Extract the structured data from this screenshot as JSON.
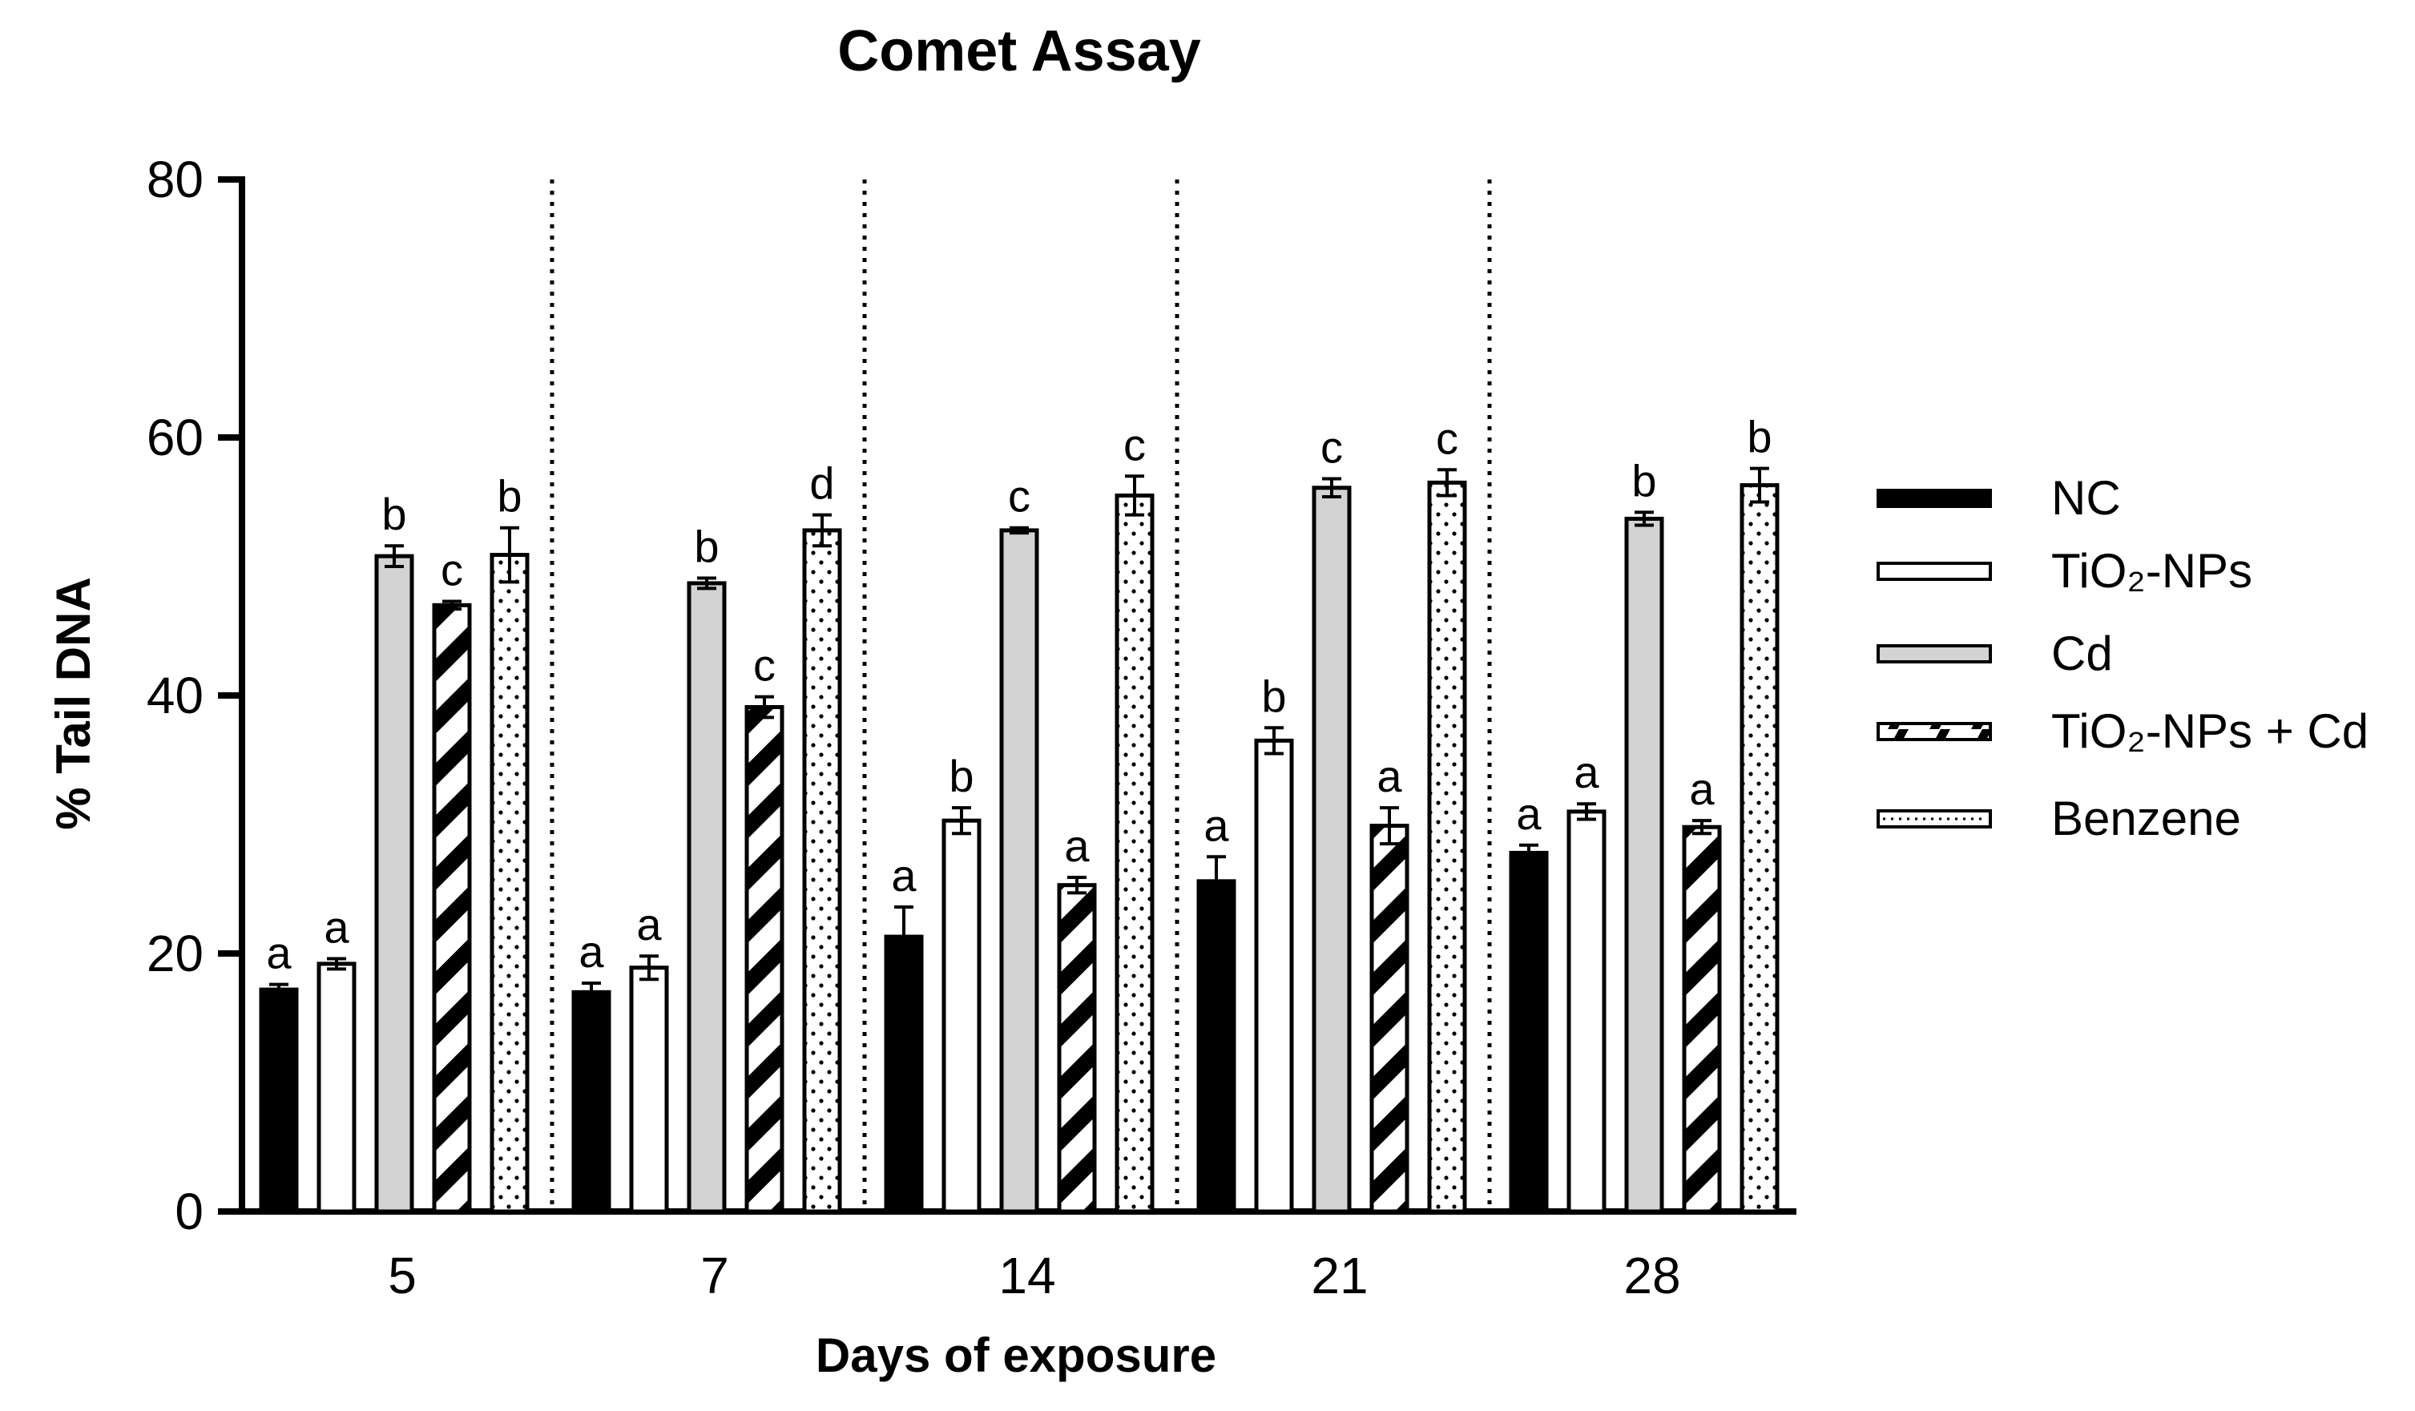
{
  "chart_data": {
    "type": "bar",
    "title": "Comet Assay",
    "xlabel": "Days of exposure",
    "ylabel": "% Tail DNA",
    "ylim": [
      0,
      80
    ],
    "yticks": [
      "0",
      "20",
      "40",
      "60",
      "80"
    ],
    "grid": false,
    "legend_position": "right",
    "categories": [
      "5",
      "7",
      "14",
      "21",
      "28"
    ],
    "series": [
      {
        "name": "NC",
        "pattern": "solid-black",
        "values": [
          17.2,
          17.0,
          21.3,
          25.6,
          27.8
        ],
        "errors": [
          0.4,
          0.7,
          2.3,
          1.9,
          0.6
        ],
        "labels": [
          "a",
          "a",
          "a",
          "a",
          "a"
        ]
      },
      {
        "name": "TiO₂-NPs",
        "pattern": "white",
        "values": [
          19.2,
          18.9,
          30.3,
          36.5,
          31.0
        ],
        "errors": [
          0.4,
          0.9,
          1.0,
          1.0,
          0.6
        ],
        "labels": [
          "a",
          "a",
          "b",
          "b",
          "a"
        ]
      },
      {
        "name": "Cd",
        "pattern": "gray",
        "values": [
          50.8,
          48.7,
          52.8,
          56.1,
          53.7
        ],
        "errors": [
          0.8,
          0.4,
          0.2,
          0.7,
          0.5
        ],
        "labels": [
          "b",
          "b",
          "c",
          "c",
          "b"
        ]
      },
      {
        "name": "TiO₂-NPs + Cd",
        "pattern": "diagonal-hatch",
        "values": [
          47.0,
          39.1,
          25.3,
          29.9,
          29.8
        ],
        "errors": [
          0.3,
          0.8,
          0.6,
          1.4,
          0.5
        ],
        "labels": [
          "c",
          "c",
          "a",
          "a",
          "a"
        ]
      },
      {
        "name": "Benzene",
        "pattern": "dotted",
        "values": [
          50.9,
          52.8,
          55.5,
          56.5,
          56.3
        ],
        "errors": [
          2.1,
          1.2,
          1.5,
          1.0,
          1.3
        ],
        "labels": [
          "b",
          "d",
          "c",
          "c",
          "b"
        ]
      }
    ],
    "colors": {
      "black": "#000000",
      "gray": "#d3d3d3",
      "white": "#ffffff"
    }
  }
}
